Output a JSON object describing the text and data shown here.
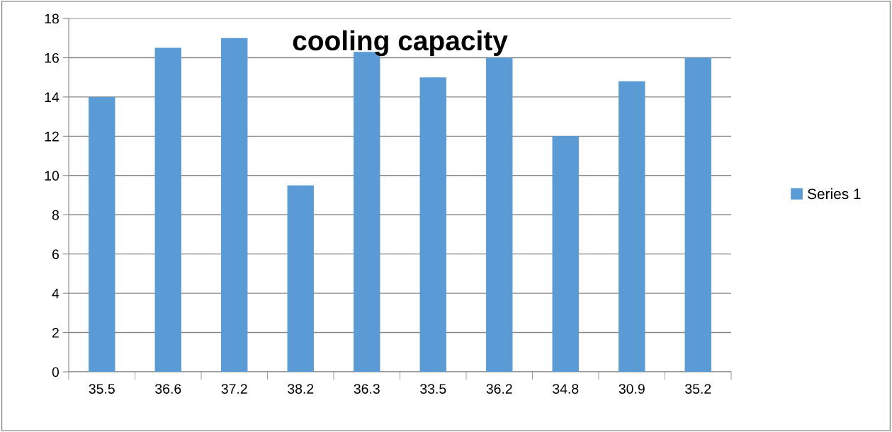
{
  "chart_data": {
    "type": "bar",
    "title": "cooling capacity",
    "categories": [
      "35.5",
      "36.6",
      "37.2",
      "38.2",
      "36.3",
      "33.5",
      "36.2",
      "34.8",
      "30.9",
      "35.2"
    ],
    "series": [
      {
        "name": "Series 1",
        "color": "#5b9bd5",
        "values": [
          14,
          16.5,
          17,
          9.5,
          16.3,
          15,
          16,
          12,
          14.8,
          16
        ]
      }
    ],
    "ylim": [
      0,
      18
    ],
    "yticks": [
      0,
      2,
      4,
      6,
      8,
      10,
      12,
      14,
      16,
      18
    ],
    "grid": "y",
    "legend": "right"
  }
}
